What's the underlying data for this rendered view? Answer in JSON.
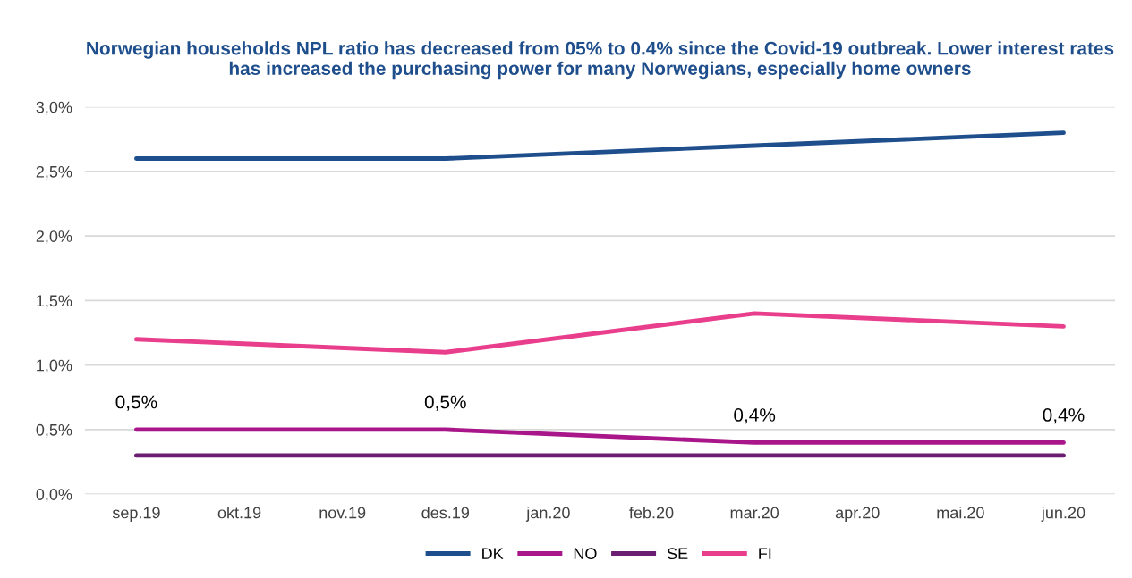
{
  "chart_data": {
    "type": "line",
    "title": "Norwegian households NPL ratio has decreased from 05% to 0.4% since the Covid-19 outbreak. Lower interest rates has increased the purchasing power for many Norwegians, especially home owners",
    "categories": [
      "sep.19",
      "okt.19",
      "nov.19",
      "des.19",
      "jan.20",
      "feb.20",
      "mar.20",
      "apr.20",
      "mai.20",
      "jun.20"
    ],
    "series": [
      {
        "name": "DK",
        "color": "#1f4e8c",
        "values": [
          2.6,
          null,
          null,
          2.6,
          null,
          null,
          2.7,
          null,
          null,
          2.8
        ]
      },
      {
        "name": "NO",
        "color": "#a8168a",
        "values": [
          0.5,
          null,
          null,
          0.5,
          null,
          null,
          0.4,
          null,
          null,
          0.4
        ],
        "value_labels": [
          "0,5%",
          null,
          null,
          "0,5%",
          null,
          null,
          "0,4%",
          null,
          null,
          "0,4%"
        ]
      },
      {
        "name": "SE",
        "color": "#6b1d72",
        "values": [
          0.3,
          null,
          null,
          0.3,
          null,
          null,
          0.3,
          null,
          null,
          0.3
        ]
      },
      {
        "name": "FI",
        "color": "#e83e8c",
        "values": [
          1.2,
          null,
          null,
          1.1,
          null,
          null,
          1.4,
          null,
          null,
          1.3
        ]
      }
    ],
    "ylim": [
      0,
      3
    ],
    "yticks": [
      {
        "value": 0,
        "label": "0,0%"
      },
      {
        "value": 0.5,
        "label": "0,5%"
      },
      {
        "value": 1,
        "label": "1,0%"
      },
      {
        "value": 1.5,
        "label": "1,5%"
      },
      {
        "value": 2,
        "label": "2,0%"
      },
      {
        "value": 2.5,
        "label": "2,5%"
      },
      {
        "value": 3,
        "label": "3,0%"
      }
    ],
    "grid": "y",
    "legend": "bottom",
    "marker": "none",
    "line_style": "solid"
  }
}
